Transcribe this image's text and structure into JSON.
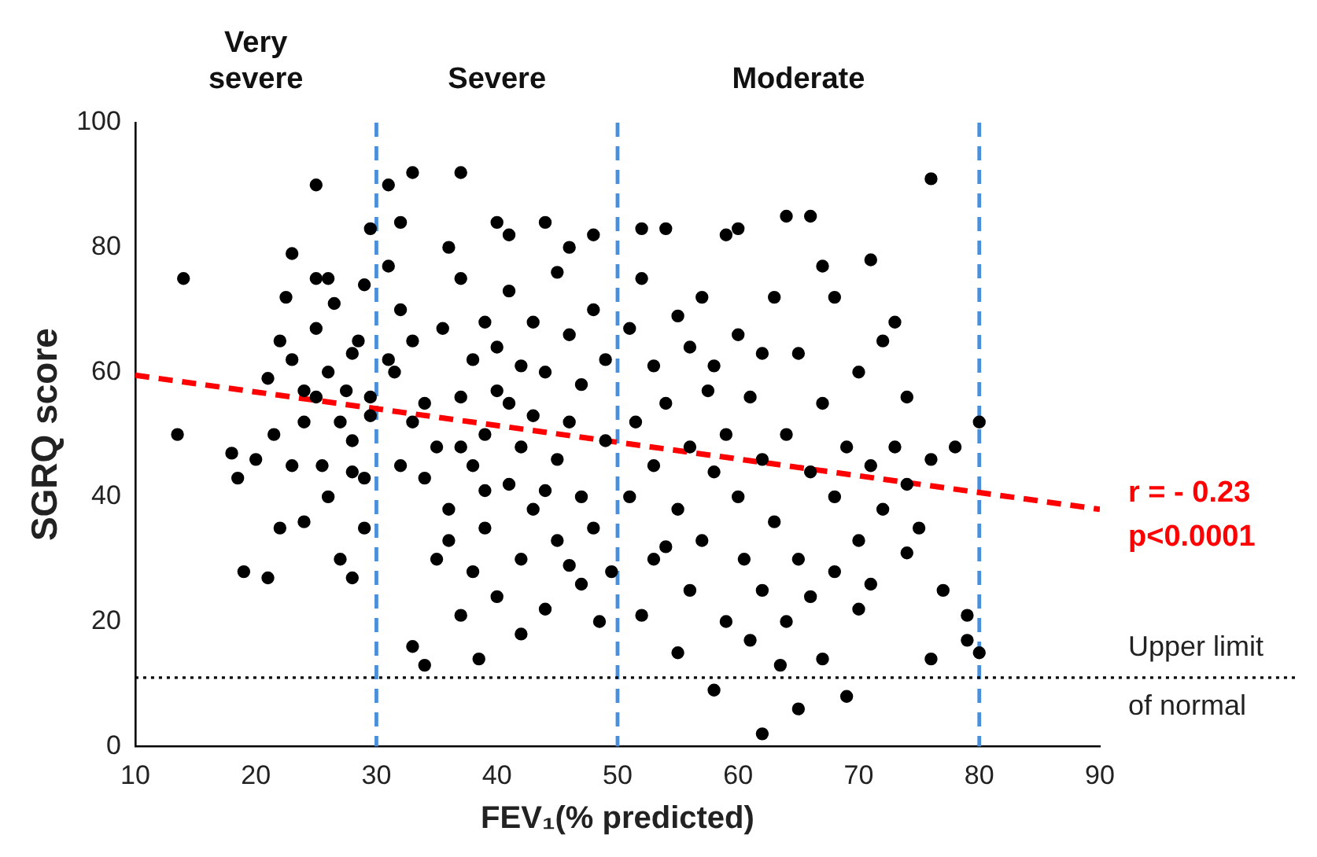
{
  "chart_data": {
    "type": "scatter",
    "xlabel": "FEV₁(% predicted)",
    "ylabel": "SGRQ score",
    "xlim": [
      10,
      90
    ],
    "xticks": [
      10,
      20,
      30,
      40,
      50,
      60,
      70,
      80,
      90
    ],
    "ylim": [
      0,
      100
    ],
    "yticks": [
      0,
      20,
      40,
      60,
      80,
      100
    ],
    "grid": false,
    "legend": false,
    "marker": "circle",
    "series": [
      {
        "color": "#000000",
        "x": [
          14,
          13.5,
          18,
          18.5,
          19,
          21,
          20,
          21,
          21.5,
          22,
          22.5,
          23,
          23,
          24,
          24,
          25,
          25,
          25,
          25,
          25.5,
          26,
          26,
          26.5,
          27,
          27,
          27.5,
          28,
          28,
          28,
          28.5,
          29,
          29,
          29,
          29.5,
          29.5,
          29.5,
          28,
          26,
          24,
          23,
          22,
          31,
          32,
          33,
          37,
          31.5,
          31,
          32,
          33,
          33,
          34,
          34,
          34,
          35,
          35,
          35.5,
          36,
          36,
          37,
          37,
          37,
          38,
          38,
          38,
          38.5,
          39,
          39,
          39,
          40,
          40,
          40,
          41,
          41,
          41,
          42,
          42,
          42,
          43,
          43,
          43,
          44,
          44,
          44,
          45,
          45,
          45,
          46,
          46,
          46,
          47,
          47,
          47,
          48,
          48,
          48,
          48.5,
          49,
          49,
          49.5,
          36,
          40,
          32,
          42,
          44,
          46,
          33,
          39,
          31,
          37,
          41,
          51,
          51,
          51.5,
          52,
          52,
          52,
          53,
          53,
          53,
          54,
          54,
          55,
          55,
          55,
          56,
          56,
          56,
          57,
          57,
          57.5,
          58,
          58,
          59,
          59,
          59,
          60,
          60,
          60,
          60.5,
          61,
          61,
          62,
          62,
          62,
          63,
          63,
          63.5,
          64,
          64,
          64,
          65,
          65,
          65,
          66,
          66,
          66,
          67,
          67,
          67,
          68,
          68,
          68,
          69,
          69,
          70,
          70,
          70,
          71,
          71,
          72,
          72,
          73,
          73,
          74,
          74,
          74,
          76,
          76,
          76,
          77,
          78,
          79,
          79,
          80,
          80,
          75,
          58,
          54,
          62,
          71
        ],
        "values": [
          75,
          50,
          47,
          43,
          28,
          27,
          46,
          59,
          50,
          65,
          72,
          79,
          62,
          57,
          36,
          90,
          75,
          67,
          56,
          45,
          60,
          40,
          71,
          52,
          30,
          57,
          63,
          49,
          27,
          65,
          74,
          43,
          35,
          56,
          83,
          53,
          44,
          75,
          52,
          45,
          35,
          90,
          84,
          92,
          92,
          60,
          77,
          70,
          65,
          16,
          13,
          55,
          43,
          48,
          30,
          67,
          80,
          38,
          75,
          56,
          21,
          62,
          45,
          28,
          14,
          68,
          50,
          35,
          84,
          57,
          24,
          82,
          42,
          73,
          61,
          30,
          48,
          68,
          53,
          38,
          84,
          22,
          60,
          76,
          46,
          33,
          80,
          66,
          52,
          40,
          26,
          58,
          82,
          70,
          35,
          20,
          49,
          62,
          28,
          33,
          64,
          45,
          18,
          41,
          29,
          52,
          41,
          62,
          48,
          55,
          67,
          40,
          52,
          83,
          75,
          21,
          61,
          45,
          30,
          83,
          55,
          69,
          38,
          15,
          64,
          48,
          25,
          72,
          33,
          57,
          9,
          44,
          82,
          50,
          20,
          83,
          66,
          40,
          30,
          56,
          17,
          2,
          46,
          25,
          72,
          36,
          13,
          85,
          50,
          20,
          6,
          63,
          30,
          85,
          44,
          24,
          77,
          55,
          14,
          72,
          40,
          28,
          8,
          48,
          60,
          33,
          22,
          78,
          45,
          65,
          38,
          48,
          68,
          56,
          42,
          31,
          91,
          46,
          14,
          25,
          48,
          17,
          21,
          52,
          15,
          35,
          61,
          32,
          63,
          26
        ]
      },
      {
        "type": "line",
        "color": "#ff0000",
        "line_style": "dashed",
        "marker": "none",
        "x": [
          10,
          90
        ],
        "values": [
          59.5,
          38
        ]
      }
    ],
    "ref_lines": [
      {
        "axis": "x",
        "value": 30,
        "color": "#4a8fdb",
        "line_style": "dashed"
      },
      {
        "axis": "x",
        "value": 50,
        "color": "#4a8fdb",
        "line_style": "dashed"
      },
      {
        "axis": "x",
        "value": 80,
        "color": "#4a8fdb",
        "line_style": "dashed"
      },
      {
        "axis": "y",
        "value": 11,
        "label": "Upper limit of normal",
        "color": "#000000",
        "line_style": "dotted"
      }
    ],
    "annotations": [
      "Very severe",
      "Severe",
      "Moderate",
      "r = - 0.23",
      "p<0.0001"
    ]
  }
}
